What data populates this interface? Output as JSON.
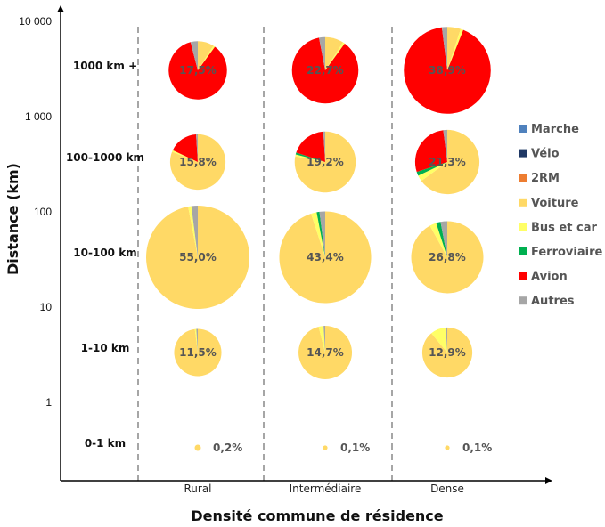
{
  "chart_data": {
    "type": "pie",
    "xlabel": "Densité commune de résidence",
    "ylabel": "Distance (km)",
    "y_scale": "log",
    "y_ticks": [
      "1",
      "10",
      "100",
      "1 000",
      "10 000"
    ],
    "categories": [
      "Rural",
      "Intermédiaire",
      "Dense"
    ],
    "distance_classes": [
      "1000 km +",
      "100-1000 km",
      "10-100 km",
      "1-10 km",
      "0-1 km"
    ],
    "legend": {
      "placement": "right",
      "items": [
        {
          "name": "Marche",
          "color": "#4f81bd"
        },
        {
          "name": "Vélo",
          "color": "#1f3864"
        },
        {
          "name": "2RM",
          "color": "#ed7d31"
        },
        {
          "name": "Voiture",
          "color": "#ffd966"
        },
        {
          "name": "Bus et car",
          "color": "#ffff66"
        },
        {
          "name": "Ferroviaire",
          "color": "#00b050"
        },
        {
          "name": "Avion",
          "color": "#ff0000"
        },
        {
          "name": "Autres",
          "color": "#a6a6a6"
        }
      ]
    },
    "pies": [
      {
        "category": "Rural",
        "distance": "1000 km +",
        "label": "17,5%",
        "share": 17.5,
        "slices": [
          {
            "mode": "Voiture",
            "value": 9
          },
          {
            "mode": "Bus et car",
            "value": 1
          },
          {
            "mode": "Avion",
            "value": 86
          },
          {
            "mode": "Autres",
            "value": 4
          }
        ]
      },
      {
        "category": "Intermédiaire",
        "distance": "1000 km +",
        "label": "22,7%",
        "share": 22.7,
        "slices": [
          {
            "mode": "Voiture",
            "value": 9
          },
          {
            "mode": "Bus et car",
            "value": 1
          },
          {
            "mode": "Avion",
            "value": 87
          },
          {
            "mode": "Autres",
            "value": 3
          }
        ]
      },
      {
        "category": "Dense",
        "distance": "1000 km +",
        "label": "38,9%",
        "share": 38.9,
        "slices": [
          {
            "mode": "Voiture",
            "value": 5
          },
          {
            "mode": "Bus et car",
            "value": 1
          },
          {
            "mode": "Avion",
            "value": 92
          },
          {
            "mode": "Autres",
            "value": 2
          }
        ]
      },
      {
        "category": "Rural",
        "distance": "100-1000 km",
        "label": "15,8%",
        "share": 15.8,
        "slices": [
          {
            "mode": "Voiture",
            "value": 81
          },
          {
            "mode": "Bus et car",
            "value": 1
          },
          {
            "mode": "Avion",
            "value": 17
          },
          {
            "mode": "Autres",
            "value": 1
          }
        ]
      },
      {
        "category": "Intermédiaire",
        "distance": "100-1000 km",
        "label": "19,2%",
        "share": 19.2,
        "slices": [
          {
            "mode": "Voiture",
            "value": 78
          },
          {
            "mode": "Bus et car",
            "value": 1
          },
          {
            "mode": "Ferroviaire",
            "value": 1
          },
          {
            "mode": "Avion",
            "value": 19
          },
          {
            "mode": "Autres",
            "value": 1
          }
        ]
      },
      {
        "category": "Dense",
        "distance": "100-1000 km",
        "label": "21,3%",
        "share": 21.3,
        "slices": [
          {
            "mode": "Voiture",
            "value": 65
          },
          {
            "mode": "Bus et car",
            "value": 3
          },
          {
            "mode": "Ferroviaire",
            "value": 2
          },
          {
            "mode": "Avion",
            "value": 28
          },
          {
            "mode": "Autres",
            "value": 2
          }
        ]
      },
      {
        "category": "Rural",
        "distance": "10-100 km",
        "label": "55,0%",
        "share": 55.0,
        "slices": [
          {
            "mode": "Voiture",
            "value": 97
          },
          {
            "mode": "Bus et car",
            "value": 1
          },
          {
            "mode": "Autres",
            "value": 2
          }
        ]
      },
      {
        "category": "Intermédiaire",
        "distance": "10-100 km",
        "label": "43,4%",
        "share": 43.4,
        "slices": [
          {
            "mode": "Voiture",
            "value": 95
          },
          {
            "mode": "Bus et car",
            "value": 2
          },
          {
            "mode": "Ferroviaire",
            "value": 1
          },
          {
            "mode": "Autres",
            "value": 2
          }
        ]
      },
      {
        "category": "Dense",
        "distance": "10-100 km",
        "label": "26,8%",
        "share": 26.8,
        "slices": [
          {
            "mode": "Voiture",
            "value": 92
          },
          {
            "mode": "Bus et car",
            "value": 3
          },
          {
            "mode": "Ferroviaire",
            "value": 2
          },
          {
            "mode": "Autres",
            "value": 3
          }
        ]
      },
      {
        "category": "Rural",
        "distance": "1-10 km",
        "label": "11,5%",
        "share": 11.5,
        "slices": [
          {
            "mode": "Voiture",
            "value": 98
          },
          {
            "mode": "Bus et car",
            "value": 1
          },
          {
            "mode": "Autres",
            "value": 1
          }
        ]
      },
      {
        "category": "Intermédiaire",
        "distance": "1-10 km",
        "label": "14,7%",
        "share": 14.7,
        "slices": [
          {
            "mode": "Voiture",
            "value": 96
          },
          {
            "mode": "Bus et car",
            "value": 3
          },
          {
            "mode": "Autres",
            "value": 1
          }
        ]
      },
      {
        "category": "Dense",
        "distance": "1-10 km",
        "label": "12,9%",
        "share": 12.9,
        "slices": [
          {
            "mode": "Voiture",
            "value": 89
          },
          {
            "mode": "Bus et car",
            "value": 10
          },
          {
            "mode": "Autres",
            "value": 1
          }
        ]
      },
      {
        "category": "Rural",
        "distance": "0-1 km",
        "label": "0,2%",
        "share": 0.2,
        "slices": [
          {
            "mode": "Voiture",
            "value": 100
          }
        ]
      },
      {
        "category": "Intermédiaire",
        "distance": "0-1 km",
        "label": "0,1%",
        "share": 0.1,
        "slices": [
          {
            "mode": "Voiture",
            "value": 100
          }
        ]
      },
      {
        "category": "Dense",
        "distance": "0-1 km",
        "label": "0,1%",
        "share": 0.1,
        "slices": [
          {
            "mode": "Voiture",
            "value": 100
          }
        ]
      }
    ]
  }
}
